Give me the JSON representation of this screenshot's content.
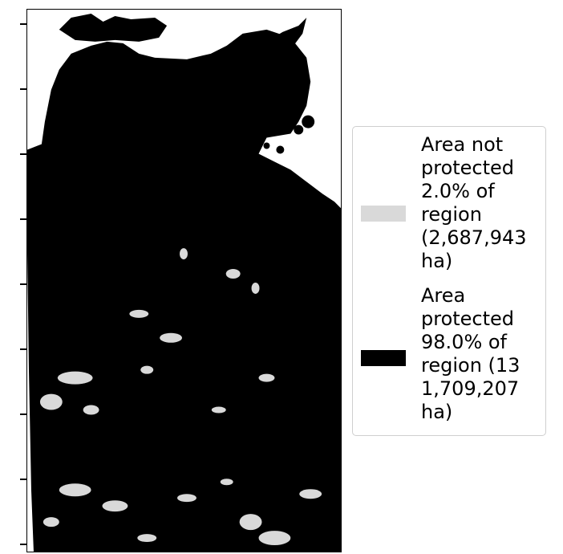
{
  "legend": {
    "items": [
      {
        "label": "Area not\nprotected\n2.0% of\nregion\n(2,687,943\nha)",
        "color": "#d9d9d9"
      },
      {
        "label": "Area\nprotected\n98.0% of\nregion (13\n1,709,207\nha)",
        "color": "#000000"
      }
    ]
  },
  "map": {
    "protected_color": "#000000",
    "unprotected_color": "#d9d9d9",
    "background_color": "#ffffff"
  }
}
